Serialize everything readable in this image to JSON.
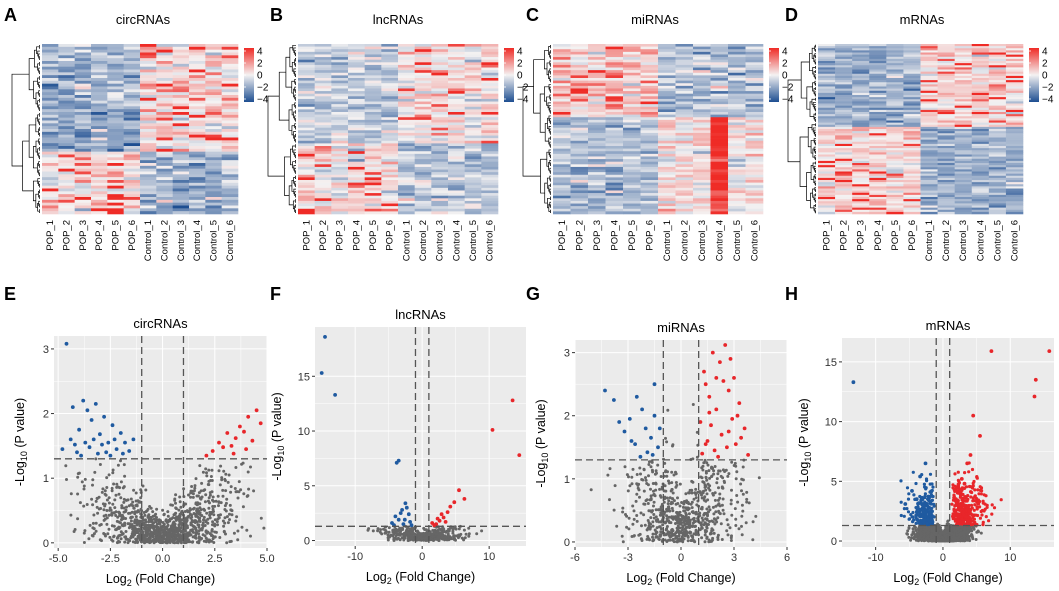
{
  "figure": {
    "heatmap_samples": [
      "POP_1",
      "POP_2",
      "POP_3",
      "POP_4",
      "POP_5",
      "POP_6",
      "Control_1",
      "Control_2",
      "Control_3",
      "Control_4",
      "Control_5",
      "Control_6"
    ],
    "colorbar_ticks": [
      "4",
      "2",
      "0",
      "−2",
      "−4"
    ],
    "ylabel_prefix": "-Log",
    "ylabel_sub": "10",
    "ylabel_suffix": " (P value)",
    "xlabel_prefix": "Log",
    "xlabel_sub": "2",
    "xlabel_suffix": " (Fold Change)"
  },
  "colors": {
    "up": "#e8262a",
    "down": "#1f5aa0",
    "ns": "#666666",
    "heat_high": "#ef2b26",
    "heat_mid": "#f4f2f2",
    "heat_low": "#1d4e91",
    "panel_bg": "#ebebeb",
    "grid": "#ffffff"
  },
  "chart_data": [
    {
      "panel": "A",
      "title": "circRNAs",
      "type": "heatmap",
      "rows": 60,
      "columns": 12,
      "value_range": [
        -4,
        4
      ],
      "pattern": "upper rows high in Control, lower rows high in POP"
    },
    {
      "panel": "B",
      "title": "lncRNAs",
      "type": "heatmap",
      "rows": 65,
      "columns": 12,
      "value_range": [
        -4,
        4
      ],
      "pattern": "upper rows high in Control, lower rows high in POP"
    },
    {
      "panel": "C",
      "title": "miRNAs",
      "type": "heatmap",
      "rows": 65,
      "columns": 12,
      "value_range": [
        -4,
        4
      ],
      "pattern": "upper rows high in POP, lower rows high in Control"
    },
    {
      "panel": "D",
      "title": "mRNAs",
      "type": "heatmap",
      "rows": 80,
      "columns": 12,
      "value_range": [
        -4,
        4
      ],
      "pattern": "upper rows high in Control, lower rows high in POP"
    },
    {
      "panel": "E",
      "title": "circRNAs",
      "type": "scatter",
      "xlim": [
        -5.2,
        5.0
      ],
      "ylim": [
        -0.08,
        3.2
      ],
      "xticks": [
        "-5.0",
        "-2.5",
        "0.0",
        "2.5",
        "5.0"
      ],
      "xtick_values": [
        -5,
        -2.5,
        0,
        2.5,
        5
      ],
      "yticks": [
        "0",
        "1",
        "2",
        "3"
      ],
      "ytick_values": [
        0,
        1,
        2,
        3
      ],
      "vlines": [
        -1,
        1
      ],
      "hline": 1.3,
      "points_up": [
        [
          2.1,
          1.35
        ],
        [
          2.4,
          1.42
        ],
        [
          2.7,
          1.55
        ],
        [
          2.9,
          1.48
        ],
        [
          3.1,
          1.7
        ],
        [
          3.3,
          1.5
        ],
        [
          3.5,
          1.62
        ],
        [
          3.7,
          1.8
        ],
        [
          3.9,
          1.72
        ],
        [
          4.1,
          1.95
        ],
        [
          4.3,
          1.58
        ],
        [
          4.5,
          2.05
        ],
        [
          4.7,
          1.85
        ],
        [
          4.0,
          1.45
        ],
        [
          3.4,
          1.38
        ]
      ],
      "points_down": [
        [
          -4.6,
          3.08
        ],
        [
          -4.8,
          1.45
        ],
        [
          -4.4,
          1.6
        ],
        [
          -4.2,
          1.52
        ],
        [
          -4.0,
          1.75
        ],
        [
          -3.8,
          2.2
        ],
        [
          -3.6,
          2.05
        ],
        [
          -3.4,
          1.9
        ],
        [
          -3.2,
          2.15
        ],
        [
          -3.0,
          1.68
        ],
        [
          -2.8,
          1.95
        ],
        [
          -2.6,
          1.55
        ],
        [
          -2.4,
          1.82
        ],
        [
          -2.2,
          1.45
        ],
        [
          -2.0,
          1.7
        ],
        [
          -1.8,
          1.55
        ],
        [
          -1.6,
          1.42
        ],
        [
          -1.4,
          1.6
        ],
        [
          -3.9,
          1.35
        ],
        [
          -3.5,
          1.48
        ],
        [
          -3.1,
          1.38
        ],
        [
          -2.7,
          1.4
        ],
        [
          -4.3,
          2.1
        ],
        [
          -3.3,
          1.6
        ],
        [
          -2.9,
          1.52
        ],
        [
          -2.5,
          1.35
        ],
        [
          -4.1,
          1.4
        ],
        [
          -3.7,
          1.55
        ],
        [
          -1.9,
          1.38
        ],
        [
          -2.3,
          1.6
        ]
      ],
      "ns_count": 1100
    },
    {
      "panel": "F",
      "title": "lncRNAs",
      "type": "scatter",
      "xlim": [
        -16,
        15.5
      ],
      "ylim": [
        -0.5,
        19.5
      ],
      "xticks": [
        "-10",
        "0",
        "10"
      ],
      "xtick_values": [
        -10,
        0,
        10
      ],
      "yticks": [
        "0",
        "5",
        "10",
        "15"
      ],
      "ytick_values": [
        0,
        5,
        10,
        15
      ],
      "vlines": [
        -1,
        1
      ],
      "hline": 1.3,
      "points_up": [
        [
          13.5,
          12.8
        ],
        [
          10.5,
          10.1
        ],
        [
          14.5,
          7.8
        ],
        [
          5.5,
          4.6
        ],
        [
          6.3,
          3.8
        ],
        [
          4.8,
          3.5
        ],
        [
          3.8,
          2.6
        ],
        [
          3.2,
          2.1
        ],
        [
          2.6,
          1.8
        ],
        [
          2.1,
          1.5
        ],
        [
          1.8,
          1.4
        ],
        [
          1.5,
          1.6
        ],
        [
          2.9,
          2.4
        ],
        [
          4.2,
          3.1
        ],
        [
          3.5,
          1.7
        ],
        [
          2.3,
          2.0
        ]
      ],
      "points_down": [
        [
          -14.5,
          18.6
        ],
        [
          -15.0,
          15.3
        ],
        [
          -13.0,
          13.3
        ],
        [
          -3.5,
          7.3
        ],
        [
          -3.8,
          7.1
        ],
        [
          -2.5,
          3.4
        ],
        [
          -3.0,
          2.8
        ],
        [
          -4.0,
          2.2
        ],
        [
          -2.0,
          2.4
        ],
        [
          -3.5,
          1.9
        ],
        [
          -2.8,
          1.5
        ],
        [
          -4.5,
          1.6
        ],
        [
          -1.8,
          1.7
        ],
        [
          -2.3,
          3.0
        ],
        [
          -3.2,
          2.5
        ],
        [
          -1.6,
          1.4
        ],
        [
          -4.2,
          1.4
        ],
        [
          -2.6,
          1.9
        ]
      ],
      "ns_count": 420
    },
    {
      "panel": "G",
      "title": "miRNAs",
      "type": "scatter",
      "xlim": [
        -6,
        6
      ],
      "ylim": [
        -0.08,
        3.2
      ],
      "xticks": [
        "-6",
        "-3",
        "0",
        "3",
        "6"
      ],
      "xtick_values": [
        -6,
        -3,
        0,
        3,
        6
      ],
      "yticks": [
        "0",
        "1",
        "2",
        "3"
      ],
      "ytick_values": [
        0,
        1,
        2,
        3
      ],
      "vlines": [
        -1,
        1
      ],
      "hline": 1.3,
      "points_up": [
        [
          2.5,
          3.12
        ],
        [
          1.8,
          3.0
        ],
        [
          2.2,
          2.85
        ],
        [
          3.0,
          2.6
        ],
        [
          1.4,
          2.5
        ],
        [
          2.7,
          2.4
        ],
        [
          1.6,
          2.3
        ],
        [
          3.3,
          2.2
        ],
        [
          2.0,
          2.1
        ],
        [
          1.3,
          2.7
        ],
        [
          2.9,
          1.95
        ],
        [
          1.7,
          1.85
        ],
        [
          3.6,
          1.8
        ],
        [
          2.3,
          1.7
        ],
        [
          1.5,
          1.6
        ],
        [
          3.1,
          1.55
        ],
        [
          2.6,
          1.5
        ],
        [
          1.9,
          1.45
        ],
        [
          1.2,
          1.4
        ],
        [
          3.8,
          1.38
        ],
        [
          2.4,
          2.55
        ],
        [
          2.8,
          2.9
        ],
        [
          1.1,
          1.9
        ],
        [
          3.4,
          1.65
        ],
        [
          2.1,
          1.35
        ],
        [
          1.6,
          2.05
        ],
        [
          2.0,
          2.6
        ],
        [
          3.2,
          2.0
        ],
        [
          2.7,
          1.75
        ],
        [
          1.4,
          1.55
        ]
      ],
      "points_down": [
        [
          -4.3,
          2.4
        ],
        [
          -3.8,
          2.25
        ],
        [
          -2.5,
          2.3
        ],
        [
          -2.2,
          2.1
        ],
        [
          -1.5,
          2.5
        ],
        [
          -2.9,
          1.95
        ],
        [
          -2.0,
          1.8
        ],
        [
          -1.7,
          1.65
        ],
        [
          -3.2,
          1.75
        ],
        [
          -1.3,
          1.5
        ],
        [
          -2.6,
          1.55
        ],
        [
          -1.9,
          1.42
        ],
        [
          -1.5,
          2.0
        ],
        [
          -2.3,
          1.35
        ],
        [
          -1.2,
          1.8
        ],
        [
          -3.5,
          1.9
        ],
        [
          -2.8,
          1.6
        ],
        [
          -1.6,
          1.38
        ]
      ],
      "ns_count": 700
    },
    {
      "panel": "H",
      "title": "mRNAs",
      "type": "scatter",
      "xlim": [
        -15,
        16.5
      ],
      "ylim": [
        -0.5,
        17
      ],
      "xticks": [
        "-10",
        "0",
        "10"
      ],
      "xtick_values": [
        -10,
        0,
        10
      ],
      "yticks": [
        "0",
        "5",
        "10",
        "15"
      ],
      "ytick_values": [
        0,
        5,
        10,
        15
      ],
      "vlines": [
        -1,
        1
      ],
      "hline": 1.3,
      "points_up": [
        [
          15.8,
          15.9
        ],
        [
          7.2,
          15.9
        ],
        [
          13.8,
          13.5
        ],
        [
          13.6,
          12.1
        ],
        [
          4.5,
          10.5
        ],
        [
          5.5,
          8.8
        ],
        [
          3.6,
          6.5
        ],
        [
          4.1,
          7.2
        ],
        [
          2.8,
          5.2
        ],
        [
          3.2,
          4.8
        ]
      ],
      "points_down": [
        [
          -13.3,
          13.3
        ],
        [
          -4.6,
          4.2
        ],
        [
          -5.6,
          3.1
        ],
        [
          -3.9,
          3.5
        ],
        [
          -2.9,
          2.9
        ],
        [
          -3.4,
          5.4
        ],
        [
          -2.6,
          6.5
        ]
      ],
      "cloud_up_count": 320,
      "cloud_down_count": 200,
      "ns_count": 2200
    }
  ]
}
